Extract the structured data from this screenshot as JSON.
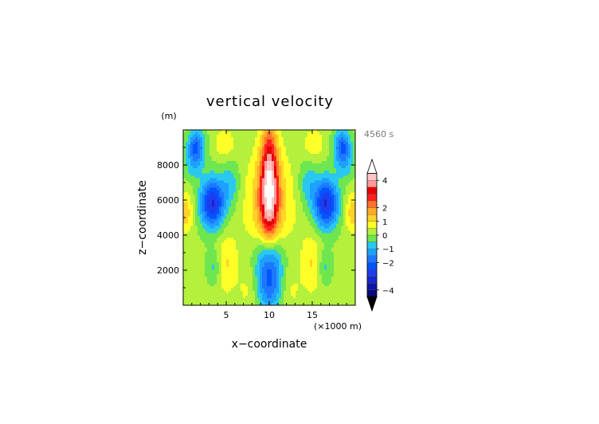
{
  "chart_data": {
    "type": "heatmap",
    "title": "vertical velocity",
    "xlabel": "x−coordinate",
    "ylabel": "z−coordinate",
    "x_unit": "(×1000 m)",
    "y_unit": "(m)",
    "time_label": "4560 s",
    "xlim": [
      0,
      20
    ],
    "ylim": [
      0,
      10000
    ],
    "x_ticks": [
      {
        "value": 5,
        "label": "5"
      },
      {
        "value": 10,
        "label": "10"
      },
      {
        "value": 15,
        "label": "15"
      }
    ],
    "y_ticks": [
      {
        "value": 2000,
        "label": "2000"
      },
      {
        "value": 4000,
        "label": "4000"
      },
      {
        "value": 6000,
        "label": "6000"
      },
      {
        "value": 8000,
        "label": "8000"
      }
    ],
    "colorbar": {
      "min": -5,
      "max": 5,
      "levels": [
        -4.5,
        -4,
        -3.5,
        -3,
        -2.5,
        -2,
        -1.5,
        -1,
        -0.5,
        0,
        0.5,
        1,
        1.5,
        2,
        2.5,
        3,
        3.5,
        4,
        4.5
      ],
      "colors": [
        "#000000",
        "#0a0a7a",
        "#0b14a3",
        "#1628cc",
        "#1e3cf0",
        "#0055ff",
        "#1e78ff",
        "#1ea0ff",
        "#2ac8f0",
        "#6ee650",
        "#b4f03c",
        "#ffff28",
        "#ffd228",
        "#ffaa28",
        "#ff7328",
        "#ff2020",
        "#e60000",
        "#ff9a9a",
        "#ffc4c4",
        "#ffffff"
      ],
      "tick_labels": [
        {
          "value": -4,
          "label": "−4"
        },
        {
          "value": -2,
          "label": "−2"
        },
        {
          "value": -1,
          "label": "−1"
        },
        {
          "value": 0,
          "label": "0"
        },
        {
          "value": 1,
          "label": "1"
        },
        {
          "value": 2,
          "label": "2"
        },
        {
          "value": 4,
          "label": "4"
        }
      ]
    },
    "field_features": [
      {
        "x": 10.0,
        "z": 7000,
        "w": 3.6,
        "sx": 0.7,
        "sz": 2300
      },
      {
        "x": 10.0,
        "z": 5800,
        "w": 1.6,
        "sx": 1.8,
        "sz": 2000
      },
      {
        "x": 10.0,
        "z": 1500,
        "w": -2.4,
        "sx": 1.0,
        "sz": 1300
      },
      {
        "x": 10.0,
        "z": 3000,
        "w": -1.0,
        "sx": 1.3,
        "sz": 900
      },
      {
        "x": 3.4,
        "z": 5800,
        "w": -3.2,
        "sx": 1.0,
        "sz": 1000
      },
      {
        "x": 16.6,
        "z": 5800,
        "w": -3.2,
        "sx": 1.0,
        "sz": 1000
      },
      {
        "x": 5.5,
        "z": 6900,
        "w": -0.9,
        "sx": 0.8,
        "sz": 900
      },
      {
        "x": 14.5,
        "z": 6900,
        "w": -0.9,
        "sx": 0.8,
        "sz": 900
      },
      {
        "x": 1.5,
        "z": 9000,
        "w": -2.3,
        "sx": 0.7,
        "sz": 700
      },
      {
        "x": 18.5,
        "z": 9000,
        "w": -2.3,
        "sx": 0.7,
        "sz": 700
      },
      {
        "x": 3.6,
        "z": 2200,
        "w": -0.9,
        "sx": 0.6,
        "sz": 700
      },
      {
        "x": 16.4,
        "z": 2200,
        "w": -0.9,
        "sx": 0.6,
        "sz": 700
      },
      {
        "x": 1.0,
        "z": 7800,
        "w": -0.6,
        "sx": 0.8,
        "sz": 600
      },
      {
        "x": 19.0,
        "z": 7800,
        "w": -0.6,
        "sx": 0.8,
        "sz": 600
      },
      {
        "x": 5.0,
        "z": 2400,
        "w": 0.9,
        "sx": 0.9,
        "sz": 1200
      },
      {
        "x": 15.0,
        "z": 2400,
        "w": 0.9,
        "sx": 0.9,
        "sz": 1200
      },
      {
        "x": 4.8,
        "z": 9200,
        "w": 0.8,
        "sx": 0.8,
        "sz": 600
      },
      {
        "x": 15.2,
        "z": 9200,
        "w": 0.8,
        "sx": 0.8,
        "sz": 600
      },
      {
        "x": 0.3,
        "z": 5300,
        "w": 1.2,
        "sx": 0.6,
        "sz": 800
      },
      {
        "x": 19.7,
        "z": 5300,
        "w": 1.2,
        "sx": 0.6,
        "sz": 800
      },
      {
        "x": 7.4,
        "z": 800,
        "w": 0.4,
        "sx": 0.8,
        "sz": 900
      },
      {
        "x": 12.6,
        "z": 800,
        "w": 0.4,
        "sx": 0.8,
        "sz": 900
      }
    ]
  }
}
